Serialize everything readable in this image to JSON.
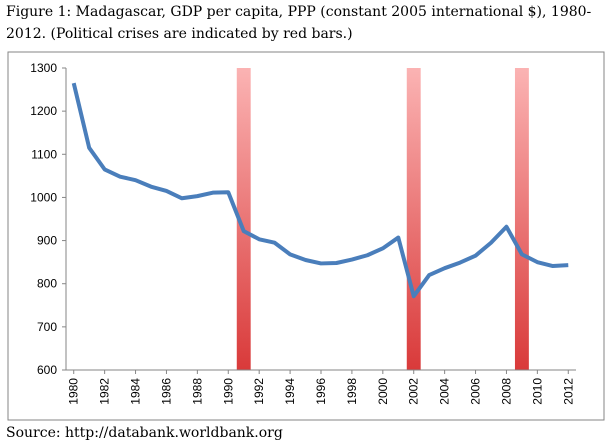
{
  "chart_data": {
    "type": "line",
    "title": [
      "Figure 1: Madagascar, GDP per capita, PPP (constant 2005 international $), 1980-",
      "2012.  (Political crises are indicated by red bars.)"
    ],
    "source": "Source: http://databank.worldbank.org",
    "x": [
      1980,
      1981,
      1982,
      1983,
      1984,
      1985,
      1986,
      1987,
      1988,
      1989,
      1990,
      1991,
      1992,
      1993,
      1994,
      1995,
      1996,
      1997,
      1998,
      1999,
      2000,
      2001,
      2002,
      2003,
      2004,
      2005,
      2006,
      2007,
      2008,
      2009,
      2010,
      2011,
      2012
    ],
    "series": [
      {
        "color": "#4a7ebb",
        "values": [
          1265,
          1115,
          1065,
          1048,
          1040,
          1025,
          1015,
          998,
          1003,
          1011,
          1012,
          922,
          903,
          895,
          868,
          855,
          847,
          848,
          856,
          866,
          882,
          907,
          771,
          820,
          836,
          849,
          865,
          895,
          932,
          868,
          850,
          841,
          843
        ]
      }
    ],
    "crises": [
      1991,
      2002,
      2009
    ],
    "crisis_color": "#d93a3a",
    "xlim": [
      1979.5,
      2012.5
    ],
    "xticks": [
      1980,
      1982,
      1984,
      1986,
      1988,
      1990,
      1992,
      1994,
      1996,
      1998,
      2000,
      2002,
      2004,
      2006,
      2008,
      2010,
      2012
    ],
    "ylim": [
      600,
      1300
    ],
    "yticks": [
      600,
      700,
      800,
      900,
      1000,
      1100,
      1200,
      1300
    ],
    "grid": false
  }
}
